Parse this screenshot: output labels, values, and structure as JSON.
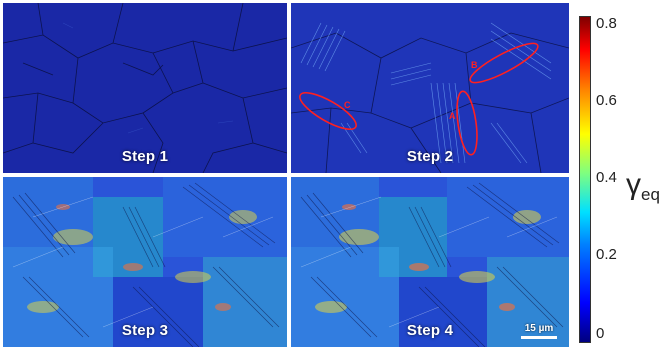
{
  "panels": [
    {
      "label": "Step 1",
      "level": 0.04
    },
    {
      "label": "Step 2",
      "level": 0.22,
      "markers": [
        "B",
        "C",
        "A"
      ]
    },
    {
      "label": "Step 3",
      "level": 0.34
    },
    {
      "label": "Step 4",
      "level": 0.36
    }
  ],
  "scale_bar": "15 µm",
  "colorbar": {
    "symbol": "γ",
    "subscript": "eq",
    "ticks": [
      "0.8",
      "0.6",
      "0.4",
      "0.2",
      "0"
    ],
    "min": 0,
    "max": 0.85
  },
  "colors": {
    "marker": "#ff2020",
    "background_strain": "#1a2aa0"
  }
}
